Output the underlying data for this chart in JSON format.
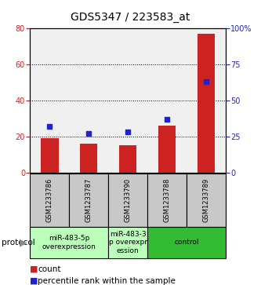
{
  "title": "GDS5347 / 223583_at",
  "samples": [
    "GSM1233786",
    "GSM1233787",
    "GSM1233790",
    "GSM1233788",
    "GSM1233789"
  ],
  "counts": [
    19,
    16,
    15,
    26,
    77
  ],
  "percentiles": [
    32,
    27,
    28,
    37,
    63
  ],
  "ylim_left": [
    0,
    80
  ],
  "ylim_right": [
    0,
    100
  ],
  "yticks_left": [
    0,
    20,
    40,
    60,
    80
  ],
  "yticks_right": [
    0,
    25,
    50,
    75,
    100
  ],
  "bar_color": "#cc2222",
  "dot_color": "#2222cc",
  "plot_bg": "#f0f0f0",
  "sample_box_color": "#c8c8c8",
  "proto_light_color": "#bbffbb",
  "proto_dark_color": "#33bb33",
  "protocols": [
    {
      "start": 0,
      "end": 1,
      "label": "miR-483-5p\noverexpression",
      "light": true
    },
    {
      "start": 2,
      "end": 2,
      "label": "miR-483-3\np overexpr\nession",
      "light": true
    },
    {
      "start": 3,
      "end": 4,
      "label": "control",
      "light": false
    }
  ],
  "legend_count_label": "count",
  "legend_pct_label": "percentile rank within the sample",
  "title_fontsize": 10,
  "tick_fontsize": 7,
  "sample_fontsize": 6,
  "proto_fontsize": 6.5,
  "legend_fontsize": 7.5
}
